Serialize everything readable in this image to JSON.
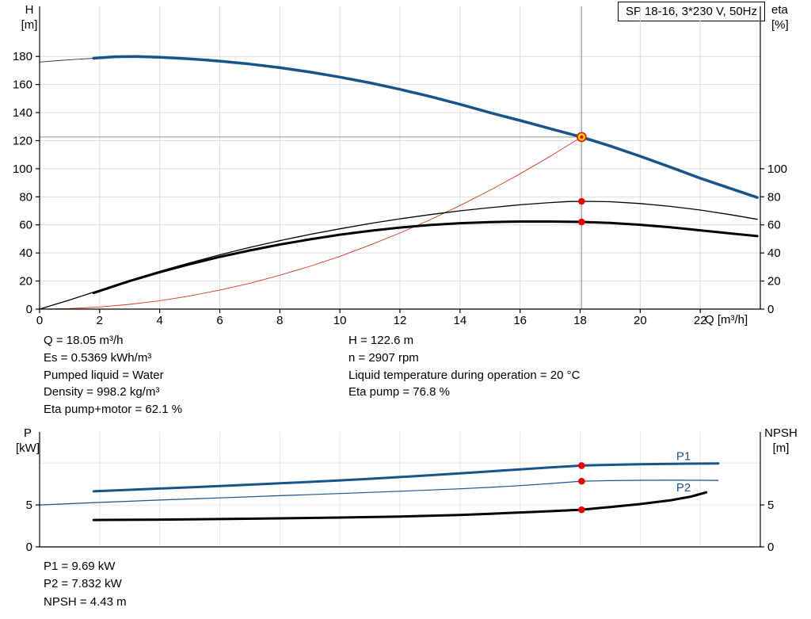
{
  "header": {
    "title": "SP 18-16, 3*230 V, 50Hz"
  },
  "results": {
    "left": [
      "Q = 18.05 m³/h",
      "Es = 0.5369 kWh/m³",
      "Pumped liquid = Water",
      "Density = 998.2 kg/m³",
      "Eta pump+motor = 62.1 %"
    ],
    "right": [
      "H = 122.6 m",
      "n = 2907 rpm",
      "Liquid temperature during operation = 20 °C",
      "Eta pump = 76.8 %"
    ],
    "footer": [
      "P1 = 9.69 kW",
      "P2 = 7.832 kW",
      "NPSH = 4.43 m"
    ]
  },
  "chart_data": [
    {
      "id": "qh-chart",
      "type": "line",
      "title": "SP 18-16, 3*230 V, 50Hz",
      "xlabel": "Q [m³/h]",
      "ylabel_left": "H\n[m]",
      "ylabel_right": "eta\n[%]",
      "x_range": [
        0,
        24
      ],
      "y_range": [
        0,
        215.7
      ],
      "x_ticks": [
        0,
        2,
        4,
        6,
        8,
        10,
        12,
        14,
        16,
        18,
        20,
        22
      ],
      "x_grid": [
        2,
        4,
        6,
        8,
        10,
        12,
        14,
        16,
        18,
        20,
        22
      ],
      "y_ticks_left": [
        0,
        20,
        40,
        60,
        80,
        100,
        120,
        140,
        160,
        180
      ],
      "y_ticks_right": [
        0,
        20,
        40,
        60,
        80,
        100
      ],
      "y_grid": [
        20,
        40,
        60,
        80,
        100,
        120,
        140,
        160,
        180
      ],
      "grid": true,
      "grid_color": "#dcdcdc",
      "crosshair_color": "#909090",
      "crosshair_lines": [
        {
          "x1": 18.05,
          "y1": 0,
          "x2": 18.05,
          "y2": 215.7
        },
        {
          "x1": 0,
          "y1": 122.6,
          "x2": 18.05,
          "y2": 122.6
        }
      ],
      "series": [
        {
          "name": "system-curve",
          "color": "#e03020",
          "width": 0.9,
          "points": [
            [
              0,
              0
            ],
            [
              1,
              0.4
            ],
            [
              2,
              1.5
            ],
            [
              3,
              3.4
            ],
            [
              4,
              6
            ],
            [
              5,
              9.4
            ],
            [
              6,
              13.6
            ],
            [
              7,
              18.4
            ],
            [
              8,
              24.1
            ],
            [
              9,
              30.5
            ],
            [
              10,
              37.6
            ],
            [
              11,
              45.6
            ],
            [
              12,
              54.2
            ],
            [
              13,
              63.6
            ],
            [
              14,
              73.8
            ],
            [
              15,
              84.7
            ],
            [
              16,
              96.4
            ],
            [
              17,
              108.8
            ],
            [
              17.5,
              115.5
            ],
            [
              18.05,
              122.6
            ]
          ]
        },
        {
          "name": "head-curve-extension",
          "color": "#333333",
          "width": 0.9,
          "points": [
            [
              0,
              176
            ],
            [
              0.6,
              177
            ],
            [
              1.2,
              177.9
            ],
            [
              1.8,
              178.7
            ]
          ]
        },
        {
          "name": "eta-pump",
          "color": "#000000",
          "width": 1.3,
          "points": [
            [
              0,
              0
            ],
            [
              1,
              6.5
            ],
            [
              2,
              13.5
            ],
            [
              3,
              20.5
            ],
            [
              4,
              27
            ],
            [
              5,
              33
            ],
            [
              6,
              38.7
            ],
            [
              7,
              44
            ],
            [
              8,
              48.8
            ],
            [
              9,
              53.2
            ],
            [
              10,
              57.2
            ],
            [
              11,
              61
            ],
            [
              12,
              64.3
            ],
            [
              13,
              67.3
            ],
            [
              14,
              70
            ],
            [
              15,
              72.3
            ],
            [
              16,
              74.3
            ],
            [
              17,
              75.9
            ],
            [
              17.6,
              76.6
            ],
            [
              18.05,
              76.8
            ],
            [
              19,
              76.5
            ],
            [
              20,
              75.2
            ],
            [
              21,
              73.2
            ],
            [
              22,
              70.6
            ],
            [
              23,
              67.3
            ],
            [
              23.9,
              64
            ]
          ]
        },
        {
          "name": "eta-pump-motor",
          "color": "#000000",
          "width": 3,
          "points": [
            [
              1.8,
              11.5
            ],
            [
              3,
              20
            ],
            [
              4,
              26.3
            ],
            [
              5,
              32
            ],
            [
              6,
              37.2
            ],
            [
              7,
              41.8
            ],
            [
              8,
              46
            ],
            [
              9,
              49.7
            ],
            [
              10,
              53
            ],
            [
              11,
              55.8
            ],
            [
              12,
              58.1
            ],
            [
              13,
              59.9
            ],
            [
              14,
              61.2
            ],
            [
              15,
              62
            ],
            [
              16,
              62.4
            ],
            [
              17,
              62.4
            ],
            [
              18.05,
              62.1
            ],
            [
              19,
              61.4
            ],
            [
              20,
              60.1
            ],
            [
              21,
              58.3
            ],
            [
              22,
              56.1
            ],
            [
              23,
              53.9
            ],
            [
              23.9,
              52
            ]
          ]
        },
        {
          "name": "head-curve",
          "color": "#17548C",
          "width": 3.5,
          "points": [
            [
              1.8,
              178.7
            ],
            [
              2.5,
              179.8
            ],
            [
              3.2,
              180
            ],
            [
              4,
              179.4
            ],
            [
              5,
              178.3
            ],
            [
              6,
              176.7
            ],
            [
              7,
              174.6
            ],
            [
              8,
              172
            ],
            [
              9,
              168.9
            ],
            [
              10,
              165.3
            ],
            [
              11,
              161.2
            ],
            [
              12,
              156.6
            ],
            [
              13,
              151.5
            ],
            [
              14,
              145.9
            ],
            [
              15,
              139.9
            ],
            [
              16,
              134.4
            ],
            [
              17,
              128.6
            ],
            [
              18.05,
              122.6
            ],
            [
              19,
              116.2
            ],
            [
              20,
              108.9
            ],
            [
              21,
              101.2
            ],
            [
              22,
              93.2
            ],
            [
              23,
              86
            ],
            [
              23.9,
              79.5
            ]
          ]
        }
      ],
      "markers": [
        {
          "name": "duty-point",
          "x": 18.05,
          "y": 122.6,
          "r": 5.5,
          "fill": "#ffd400",
          "stroke": "#e01010",
          "stroke_width": 1.6
        },
        {
          "name": "duty-point-center",
          "x": 18.05,
          "y": 122.6,
          "r": 2.1,
          "fill": "#e01010"
        },
        {
          "name": "eta-pump-point",
          "x": 18.05,
          "y": 76.8,
          "r": 4.3,
          "fill": "#ee0000"
        },
        {
          "name": "eta-pump-motor-point",
          "x": 18.05,
          "y": 62.1,
          "r": 4.3,
          "fill": "#ee0000"
        }
      ],
      "annotations": []
    },
    {
      "id": "power-chart",
      "type": "line",
      "title": "",
      "xlabel": "",
      "ylabel_left": "P\n[kW]",
      "ylabel_right": "NPSH\n[m]",
      "x_range": [
        0,
        24
      ],
      "y_range": [
        0,
        13.7
      ],
      "x_ticks": [],
      "x_grid": [
        2,
        4,
        6,
        8,
        10,
        12,
        14,
        16,
        18,
        20,
        22
      ],
      "y_ticks_left": [
        0,
        5
      ],
      "y_ticks_right": [
        0,
        5
      ],
      "y_grid": [
        5,
        10
      ],
      "grid": true,
      "grid_color": "#e6e6e6",
      "crosshair_color": "#909090",
      "crosshair_lines": [],
      "series": [
        {
          "name": "p2-curve",
          "color": "#17548C",
          "width": 1.2,
          "points": [
            [
              0,
              5
            ],
            [
              2,
              5.3
            ],
            [
              4,
              5.58
            ],
            [
              6,
              5.84
            ],
            [
              8,
              6.1
            ],
            [
              10,
              6.36
            ],
            [
              12,
              6.63
            ],
            [
              14,
              6.93
            ],
            [
              15,
              7.1
            ],
            [
              16,
              7.3
            ],
            [
              17,
              7.55
            ],
            [
              18.05,
              7.83
            ],
            [
              19,
              7.9
            ],
            [
              20,
              7.94
            ],
            [
              21,
              7.95
            ],
            [
              22,
              7.94
            ],
            [
              22.6,
              7.93
            ]
          ]
        },
        {
          "name": "p1-curve",
          "color": "#17548C",
          "width": 3,
          "points": [
            [
              1.8,
              6.62
            ],
            [
              3,
              6.8
            ],
            [
              4,
              6.95
            ],
            [
              5,
              7.1
            ],
            [
              6,
              7.26
            ],
            [
              7,
              7.42
            ],
            [
              8,
              7.58
            ],
            [
              9,
              7.75
            ],
            [
              10,
              7.93
            ],
            [
              11,
              8.12
            ],
            [
              12,
              8.32
            ],
            [
              13,
              8.54
            ],
            [
              14,
              8.77
            ],
            [
              15,
              9
            ],
            [
              16,
              9.24
            ],
            [
              17,
              9.47
            ],
            [
              18.05,
              9.69
            ],
            [
              19,
              9.78
            ],
            [
              20,
              9.85
            ],
            [
              21,
              9.9
            ],
            [
              22,
              9.93
            ],
            [
              22.6,
              9.94
            ]
          ]
        },
        {
          "name": "npsh-curve",
          "color": "#000000",
          "width": 3,
          "points": [
            [
              1.8,
              3.2
            ],
            [
              4,
              3.25
            ],
            [
              6,
              3.32
            ],
            [
              8,
              3.4
            ],
            [
              10,
              3.5
            ],
            [
              12,
              3.62
            ],
            [
              14,
              3.8
            ],
            [
              15,
              3.95
            ],
            [
              16,
              4.1
            ],
            [
              17,
              4.25
            ],
            [
              18.05,
              4.43
            ],
            [
              19,
              4.75
            ],
            [
              20,
              5.1
            ],
            [
              21,
              5.55
            ],
            [
              21.7,
              6
            ],
            [
              22.2,
              6.5
            ]
          ]
        }
      ],
      "markers": [
        {
          "name": "p1-point",
          "x": 18.05,
          "y": 9.69,
          "r": 4.3,
          "fill": "#ee0000"
        },
        {
          "name": "p2-point",
          "x": 18.05,
          "y": 7.83,
          "r": 4.3,
          "fill": "#ee0000"
        },
        {
          "name": "npsh-point",
          "x": 18.05,
          "y": 4.43,
          "r": 4.3,
          "fill": "#ee0000"
        }
      ],
      "annotations": [
        {
          "text": "P1",
          "x": 21.2,
          "y": 10.35,
          "color": "#17548C"
        },
        {
          "text": "P2",
          "x": 21.2,
          "y": 6.6,
          "color": "#17548C"
        }
      ]
    }
  ]
}
